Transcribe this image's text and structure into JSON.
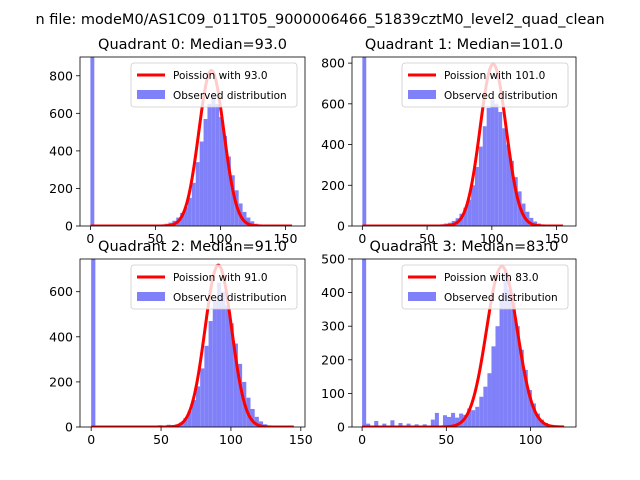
{
  "suptitle": "n file: modeM0/AS1C09_011T05_9000006466_51839cztM0_level2_quad_clean",
  "colors": {
    "hist": "#8080f8",
    "fit": "#ff0000"
  },
  "chart_data": [
    {
      "type": "bar",
      "title": "Quadrant 0: Median=93.0",
      "xlim": [
        -8,
        165
      ],
      "ylim": [
        0,
        900
      ],
      "xticks": [
        0,
        50,
        100,
        150
      ],
      "yticks": [
        0,
        200,
        400,
        600,
        800
      ],
      "bin_width": 3.0,
      "legend": [
        "Poission with 93.0",
        "Observed distribution"
      ],
      "bins": [
        [
          0,
          6000
        ],
        [
          51,
          3
        ],
        [
          54,
          6
        ],
        [
          57,
          12
        ],
        [
          60,
          18
        ],
        [
          63,
          28
        ],
        [
          66,
          45
        ],
        [
          69,
          70
        ],
        [
          72,
          100
        ],
        [
          75,
          150
        ],
        [
          78,
          230
        ],
        [
          81,
          340
        ],
        [
          84,
          450
        ],
        [
          87,
          570
        ],
        [
          90,
          650
        ],
        [
          93,
          700
        ],
        [
          96,
          650
        ],
        [
          99,
          580
        ],
        [
          102,
          480
        ],
        [
          105,
          370
        ],
        [
          108,
          270
        ],
        [
          111,
          190
        ],
        [
          114,
          120
        ],
        [
          117,
          75
        ],
        [
          120,
          45
        ],
        [
          123,
          25
        ],
        [
          126,
          12
        ],
        [
          129,
          6
        ],
        [
          132,
          3
        ],
        [
          135,
          2
        ]
      ],
      "fit": {
        "mu": 93.0,
        "peak": 828,
        "x_range": [
          0,
          155
        ]
      }
    },
    {
      "type": "bar",
      "title": "Quadrant 1: Median=101.0",
      "xlim": [
        -8,
        165
      ],
      "ylim": [
        0,
        830
      ],
      "xticks": [
        0,
        50,
        100,
        150
      ],
      "yticks": [
        0,
        200,
        400,
        600,
        800
      ],
      "bin_width": 3.0,
      "legend": [
        "Poission with 101.0",
        "Observed distribution"
      ],
      "bins": [
        [
          0,
          6000
        ],
        [
          54,
          3
        ],
        [
          57,
          5
        ],
        [
          60,
          8
        ],
        [
          63,
          12
        ],
        [
          66,
          16
        ],
        [
          69,
          25
        ],
        [
          72,
          38
        ],
        [
          75,
          60
        ],
        [
          78,
          90
        ],
        [
          81,
          130
        ],
        [
          84,
          200
        ],
        [
          87,
          290
        ],
        [
          90,
          390
        ],
        [
          93,
          490
        ],
        [
          96,
          580
        ],
        [
          99,
          620
        ],
        [
          102,
          600
        ],
        [
          105,
          560
        ],
        [
          108,
          480
        ],
        [
          111,
          400
        ],
        [
          114,
          320
        ],
        [
          117,
          240
        ],
        [
          120,
          170
        ],
        [
          123,
          110
        ],
        [
          126,
          70
        ],
        [
          129,
          40
        ],
        [
          132,
          22
        ],
        [
          135,
          12
        ],
        [
          138,
          6
        ],
        [
          141,
          3
        ]
      ],
      "fit": {
        "mu": 101.0,
        "peak": 795,
        "x_range": [
          0,
          155
        ]
      }
    },
    {
      "type": "bar",
      "title": "Quadrant 2: Median=91.0",
      "xlim": [
        -8,
        153
      ],
      "ylim": [
        0,
        745
      ],
      "xticks": [
        0,
        50,
        100,
        150
      ],
      "yticks": [
        0,
        200,
        400,
        600
      ],
      "bin_width": 3.0,
      "legend": [
        "Poission with 91.0",
        "Observed distribution"
      ],
      "bins": [
        [
          0,
          6000
        ],
        [
          48,
          8
        ],
        [
          51,
          6
        ],
        [
          54,
          10
        ],
        [
          57,
          8
        ],
        [
          60,
          10
        ],
        [
          63,
          20
        ],
        [
          66,
          40
        ],
        [
          69,
          70
        ],
        [
          72,
          120
        ],
        [
          75,
          180
        ],
        [
          78,
          260
        ],
        [
          81,
          360
        ],
        [
          84,
          470
        ],
        [
          87,
          560
        ],
        [
          90,
          640
        ],
        [
          93,
          600
        ],
        [
          96,
          540
        ],
        [
          99,
          460
        ],
        [
          102,
          370
        ],
        [
          105,
          280
        ],
        [
          108,
          200
        ],
        [
          111,
          130
        ],
        [
          114,
          80
        ],
        [
          117,
          45
        ],
        [
          120,
          25
        ],
        [
          123,
          12
        ],
        [
          126,
          6
        ],
        [
          129,
          3
        ]
      ],
      "fit": {
        "mu": 91.0,
        "peak": 718,
        "x_range": [
          0,
          145
        ]
      }
    },
    {
      "type": "bar",
      "title": "Quadrant 3: Median=83.0",
      "xlim": [
        -6,
        127
      ],
      "ylim": [
        0,
        500
      ],
      "xticks": [
        0,
        50,
        100
      ],
      "yticks": [
        0,
        100,
        200,
        300,
        400,
        500
      ],
      "bin_width": 2.4,
      "legend": [
        "Poission with 83.0",
        "Observed distribution"
      ],
      "bins": [
        [
          0,
          6000
        ],
        [
          2.4,
          10
        ],
        [
          7.2,
          18
        ],
        [
          12,
          10
        ],
        [
          16.8,
          20
        ],
        [
          21.6,
          12
        ],
        [
          26.4,
          10
        ],
        [
          31.2,
          8
        ],
        [
          36,
          8
        ],
        [
          40.8,
          22
        ],
        [
          43.2,
          42
        ],
        [
          48,
          35
        ],
        [
          50.4,
          30
        ],
        [
          52.8,
          42
        ],
        [
          55.2,
          28
        ],
        [
          57.6,
          40
        ],
        [
          60,
          36
        ],
        [
          62.4,
          55
        ],
        [
          64.8,
          50
        ],
        [
          67.2,
          60
        ],
        [
          69.6,
          90
        ],
        [
          72,
          120
        ],
        [
          74.4,
          160
        ],
        [
          76.8,
          240
        ],
        [
          79.2,
          300
        ],
        [
          81.6,
          380
        ],
        [
          84,
          460
        ],
        [
          86.4,
          410
        ],
        [
          88.8,
          370
        ],
        [
          91.2,
          300
        ],
        [
          93.6,
          230
        ],
        [
          96,
          170
        ],
        [
          98.4,
          110
        ],
        [
          100.8,
          70
        ],
        [
          103.2,
          40
        ],
        [
          105.6,
          22
        ],
        [
          108,
          12
        ],
        [
          110.4,
          6
        ]
      ],
      "fit": {
        "mu": 83.0,
        "peak": 478,
        "x_range": [
          0,
          120
        ]
      }
    }
  ]
}
